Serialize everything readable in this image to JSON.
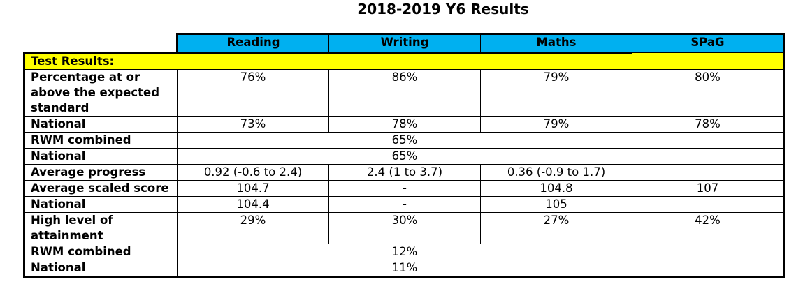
{
  "title": "2018-2019 Y6 Results",
  "columns": [
    "Reading",
    "Writing",
    "Maths",
    "SPaG"
  ],
  "section_label": "Test Results:",
  "rows": {
    "pct_expected": {
      "label": "Percentage at or above the expected standard",
      "reading": "76%",
      "writing": "86%",
      "maths": "79%",
      "spag": "80%"
    },
    "national_1": {
      "label": "National",
      "reading": "73%",
      "writing": "78%",
      "maths": "79%",
      "spag": "78%"
    },
    "rwm_1": {
      "label": "RWM combined",
      "value": "65%"
    },
    "national_2": {
      "label": "National",
      "value": "65%"
    },
    "avg_progress": {
      "label": "Average progress",
      "reading": "0.92 (-0.6 to 2.4)",
      "writing": "2.4 (1 to 3.7)",
      "maths": "0.36 (-0.9 to 1.7)",
      "spag": ""
    },
    "avg_scaled": {
      "label": "Average scaled score",
      "reading": "104.7",
      "writing": "-",
      "maths": "104.8",
      "spag": "107"
    },
    "national_3": {
      "label": "National",
      "reading": "104.4",
      "writing": "-",
      "maths": "105",
      "spag": ""
    },
    "high_level": {
      "label": "High level of attainment",
      "reading": "29%",
      "writing": "30%",
      "maths": "27%",
      "spag": "42%"
    },
    "rwm_2": {
      "label": "RWM combined",
      "value": "12%"
    },
    "national_4": {
      "label": "National",
      "value": "11%"
    }
  }
}
